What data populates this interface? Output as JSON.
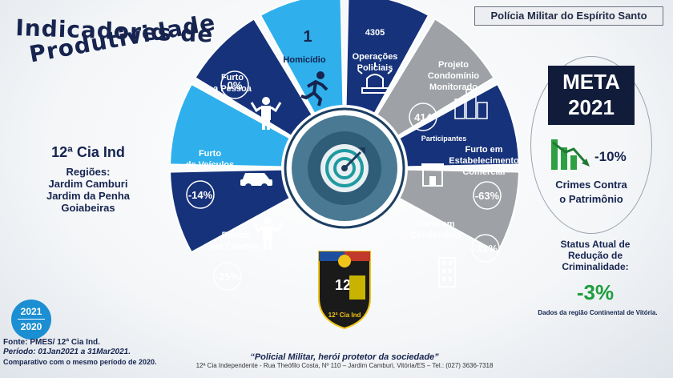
{
  "header": {
    "organization": "Polícia Militar do Espírito Santo"
  },
  "title": {
    "line1": "Indicadores de",
    "line2": "Produtividade"
  },
  "unit": {
    "name": "12ª Cia Ind",
    "regions_label": "Regiões:",
    "regions": [
      "Jardim Camburi",
      "Jardim da Penha",
      "Goiabeiras"
    ]
  },
  "wheel": {
    "segments": [
      {
        "id": "roubo-coletivo",
        "line1": "Roubo",
        "line2": "em Coletivo",
        "value": "-25%",
        "color": "#16327a",
        "icon": "person-shrug-icon"
      },
      {
        "id": "furto-veiculos",
        "line1": "Furto",
        "line2": "de Veículos",
        "value": "-14%",
        "color": "#2fb0ec",
        "icon": "car-icon"
      },
      {
        "id": "furto-pessoa",
        "line1": "Furto",
        "line2": "a Pessoa",
        "value": "0%",
        "color": "#16327a",
        "icon": "person-shrug-icon"
      },
      {
        "id": "homicidio",
        "line1": "Homicídio",
        "line2": "",
        "value": "1",
        "color": "#2fb0ec",
        "icon": "running-person-icon"
      },
      {
        "id": "operacoes",
        "line1": "Operações",
        "line2": "Policiais",
        "value": "4305",
        "color": "#16327a",
        "icon": "police-siren-icon"
      },
      {
        "id": "projeto-condominio",
        "line1": "Projeto",
        "line2": "Condomínio",
        "line3": "Monitorado",
        "value": "414",
        "extra": "Participantes",
        "color": "#9ea1a6",
        "icon": "buildings-icon"
      },
      {
        "id": "furto-comercial",
        "line1": "Furto em",
        "line2": "Estabelecimento",
        "line3": "Comercial",
        "value": "-63%",
        "color": "#16327a",
        "icon": "store-icon"
      },
      {
        "id": "furto-condominio",
        "line1": "Furto em",
        "line2": "Condomínio",
        "value": "-32%",
        "color": "#9ea1a6",
        "icon": "building-icon"
      }
    ],
    "center_icon": "target-arrow-icon"
  },
  "badge": {
    "text": "12",
    "caption": "12ª Cia Ind"
  },
  "years": {
    "top": "2021",
    "bottom": "2020"
  },
  "meta": {
    "label": "META",
    "year": "2021",
    "value": "-10%",
    "description_line1": "Crimes Contra",
    "description_line2": "o Patrimônio",
    "icon": "chart-down-icon"
  },
  "status": {
    "line1": "Status Atual de",
    "line2": "Redução de",
    "line3": "Criminalidade:",
    "value": "-3%",
    "note": "Dados da região Continental de Vitória."
  },
  "footer": {
    "source": "Fonte: PMES/ 12ª Cia Ind.",
    "period": "Período: 01Jan2021 a 31Mar2021.",
    "comparison": "Comparativo com o mesmo período de 2020.",
    "slogan": "“Policial Militar, herói protetor da sociedade”",
    "address": "12ª Cia Independente - Rua Theófilo Costa, Nº 110 – Jardim Camburi, Vitória/ES – Tel.: (027) 3636-7318"
  },
  "colors": {
    "navy": "#16327a",
    "sky": "#2fb0ec",
    "gray": "#9ea1a6",
    "dark": "#111c3a",
    "green": "#1f9e3e"
  }
}
